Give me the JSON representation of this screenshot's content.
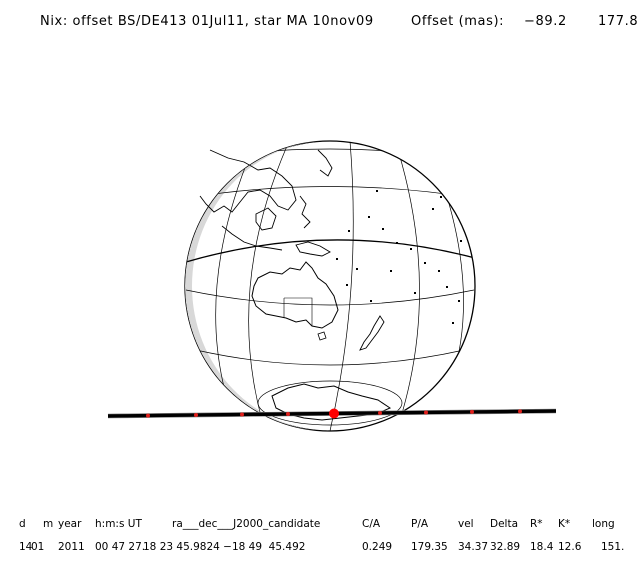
{
  "header": {
    "title": "Nix: offset BS/DE413 01Jul11, star MA 10nov09",
    "offset_label": "Offset (mas):",
    "offset_x": "−89.2",
    "offset_y": "177.8"
  },
  "columns": [
    {
      "label": "d",
      "value": "14"
    },
    {
      "label": "m",
      "value": "01"
    },
    {
      "label": "year",
      "value": "2011"
    },
    {
      "label": "h:m:s UT",
      "value": "00 47 27."
    },
    {
      "label": "ra___dec___J2000_candidate",
      "value": "18 23 45.9824 −18 49  45.492"
    },
    {
      "label": "C/A",
      "value": "0.249"
    },
    {
      "label": "P/A",
      "value": "179.35"
    },
    {
      "label": "vel",
      "value": "34.37"
    },
    {
      "label": "Delta",
      "value": "32.89"
    },
    {
      "label": "R*",
      "value": "18.4"
    },
    {
      "label": "K*",
      "value": "12.6"
    },
    {
      "label": "long",
      "value": "151."
    }
  ],
  "colors": {
    "track": "#000000",
    "track_points": "#e0201c",
    "closest_approach": "#ff0000",
    "night_shade": "#d8d8d8",
    "coastline": "#000000",
    "graticule": "#000000"
  }
}
